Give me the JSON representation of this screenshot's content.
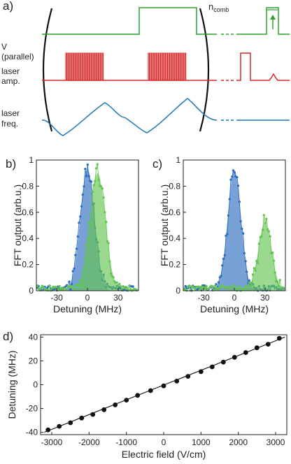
{
  "colors": {
    "voltage": "#2ca02c",
    "laser_amp": "#d62728",
    "laser_freq": "#1f77b4",
    "blue": "#2f6fbf",
    "green": "#64c452",
    "axis": "#222222"
  },
  "panel_a": {
    "label": "a)",
    "repeat_label": "n",
    "repeat_sub": "comb",
    "rows": [
      {
        "label_line1": "V",
        "label_line2": "(parallel)"
      },
      {
        "label_line1": "laser",
        "label_line2": "amp."
      },
      {
        "label_line1": "laser",
        "label_line2": "freq."
      }
    ]
  },
  "chart_data": [
    {
      "type": "scatter",
      "panel": "b)",
      "xlabel": "Detuning (MHz)",
      "ylabel": "FFT output (arb.u.)",
      "xlim": [
        -50,
        50
      ],
      "ylim": [
        0,
        1
      ],
      "xticks": [
        -30,
        0,
        30
      ],
      "yticks": [
        0,
        0.2,
        0.4,
        0.6,
        0.8,
        1
      ],
      "grid": false,
      "series": [
        {
          "color": "blue",
          "center": 0,
          "amp": 0.93,
          "sigma": 7.0,
          "noise": 0.025
        },
        {
          "color": "green",
          "center": 10,
          "amp": 0.9,
          "sigma": 7.5,
          "noise": 0.025
        }
      ]
    },
    {
      "type": "scatter",
      "panel": "c)",
      "xlabel": "Detuning (MHz)",
      "ylabel": "FFT output (arb.u.)",
      "xlim": [
        -50,
        50
      ],
      "ylim": [
        0,
        1
      ],
      "xticks": [
        -30,
        0,
        30
      ],
      "yticks": [
        0,
        0.2,
        0.4,
        0.6,
        0.8,
        1
      ],
      "grid": false,
      "series": [
        {
          "color": "blue",
          "center": 0,
          "amp": 0.92,
          "sigma": 6.5,
          "noise": 0.025
        },
        {
          "color": "green",
          "center": 30,
          "amp": 0.52,
          "sigma": 6.5,
          "noise": 0.025
        }
      ]
    },
    {
      "type": "scatter",
      "panel": "d)",
      "xlabel": "Electric field (V/cm)",
      "ylabel": "Detuning (MHz)",
      "xlim": [
        -3300,
        3300
      ],
      "ylim": [
        -42,
        42
      ],
      "xticks": [
        -3000,
        -2000,
        -1000,
        0,
        1000,
        2000,
        3000
      ],
      "yticks": [
        -40,
        -20,
        0,
        20,
        40
      ],
      "grid": false,
      "x": [
        -3100,
        -2800,
        -2500,
        -2200,
        -1900,
        -1600,
        -1300,
        -1000,
        -700,
        -350,
        0,
        350,
        650,
        1000,
        1300,
        1600,
        1900,
        2200,
        2500,
        2800,
        3100
      ],
      "y": [
        -38,
        -35,
        -32,
        -28,
        -25,
        -21,
        -17,
        -13,
        -9,
        -5,
        -1,
        3,
        7,
        11,
        15,
        19,
        23,
        27,
        31,
        34,
        39
      ],
      "fit": {
        "x": [
          -3200,
          3250
        ],
        "y": [
          -40,
          40
        ]
      }
    }
  ]
}
